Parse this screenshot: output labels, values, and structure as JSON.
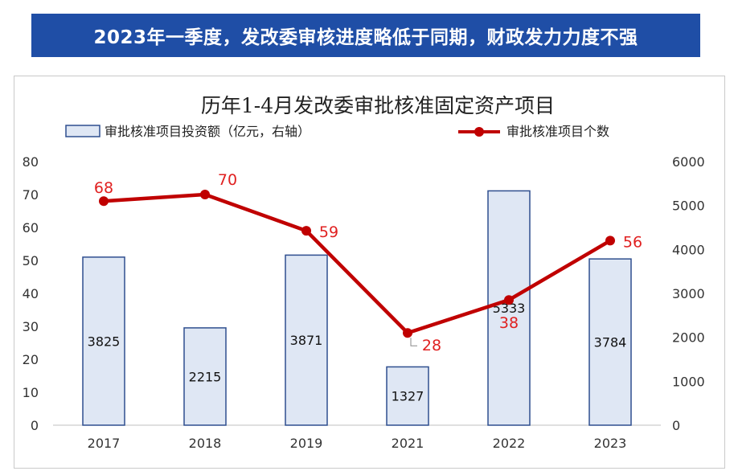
{
  "banner": {
    "title": "2023年一季度，发改委审核进度略低于同期，财政发力力度不强"
  },
  "colors": {
    "banner_bg": "#1f4ea6",
    "bar_fill": "#dfe7f4",
    "bar_stroke": "#2f4f8f",
    "line": "#c00000",
    "line_label": "#e02020"
  },
  "chart_data": {
    "type": "bar+line",
    "title": "历年1-4月发改委审批核准固定资产项目",
    "categories": [
      "2017",
      "2018",
      "2019",
      "2021",
      "2022",
      "2023"
    ],
    "legend_placement": "top",
    "grid": false,
    "series": [
      {
        "name": "审批核准项目投资额（亿元，右轴）",
        "type": "bar",
        "axis": "right",
        "values": [
          3825,
          2215,
          3871,
          1327,
          5333,
          3784
        ],
        "value_labels": [
          "3825",
          "2215",
          "3871",
          "1327",
          "5333",
          "3784"
        ]
      },
      {
        "name": "审批核准项目个数",
        "type": "line",
        "axis": "left",
        "values": [
          68,
          70,
          59,
          28,
          38,
          56
        ],
        "value_labels": [
          "68",
          "70",
          "59",
          "28",
          "38",
          "56"
        ]
      }
    ],
    "left_axis": {
      "ylim": [
        0,
        80
      ],
      "ticks": [
        "0",
        "10",
        "20",
        "30",
        "40",
        "50",
        "60",
        "70",
        "80"
      ]
    },
    "right_axis": {
      "ylim": [
        0,
        6000
      ],
      "ticks": [
        "0",
        "1000",
        "2000",
        "3000",
        "4000",
        "5000",
        "6000"
      ]
    }
  }
}
